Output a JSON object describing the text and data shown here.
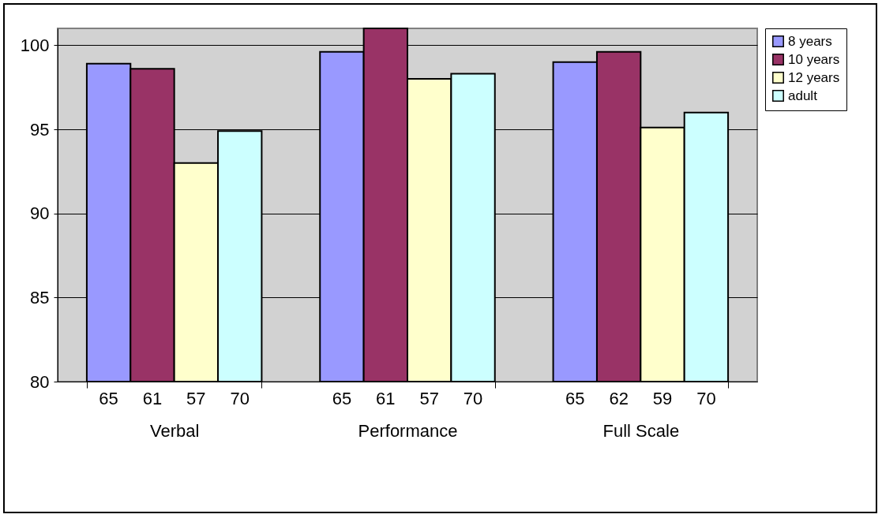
{
  "chart_data": {
    "type": "bar",
    "categories": [
      "Verbal",
      "Performance",
      "Full Scale"
    ],
    "series": [
      {
        "name": "8 years",
        "color": "#9999ff",
        "values": [
          98.9,
          99.6,
          99.0
        ]
      },
      {
        "name": "10 years",
        "color": "#993366",
        "values": [
          98.6,
          101,
          99.6
        ]
      },
      {
        "name": "12 years",
        "color": "#ffffcc",
        "values": [
          93.0,
          98.0,
          95.1
        ]
      },
      {
        "name": "adult",
        "color": "#ccffff",
        "values": [
          94.9,
          98.3,
          96.0
        ]
      }
    ],
    "annotations": [
      "65",
      "61",
      "57",
      "70",
      "65",
      "61",
      "57",
      "70",
      "65",
      "62",
      "59",
      "70"
    ],
    "ylim": [
      80,
      101
    ],
    "yticks": [
      80,
      85,
      90,
      95,
      100
    ],
    "grid": "y",
    "legend": "right"
  }
}
